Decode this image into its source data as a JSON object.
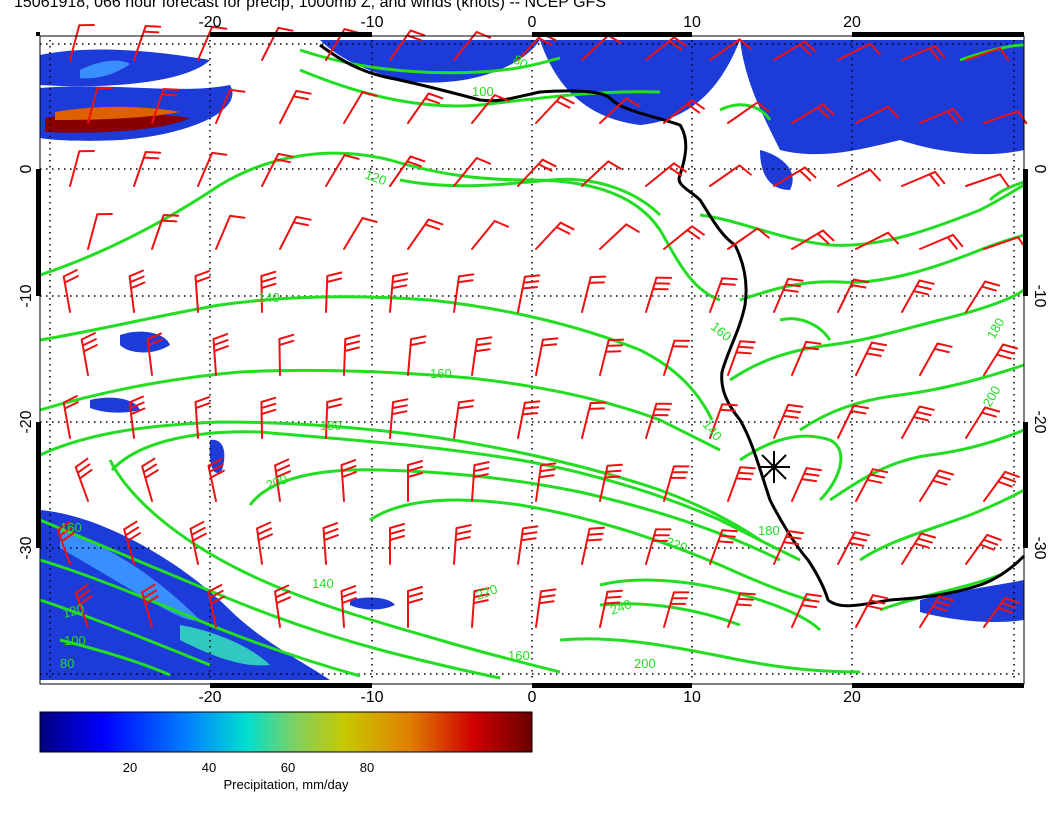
{
  "title": "15061918, 066 hour forecast for precip, 1000mb Z, and winds (knots) -- NCEP GFS",
  "map": {
    "lon_ticks": [
      "-20",
      "-10",
      "0",
      "10",
      "20"
    ],
    "lat_ticks": [
      "0",
      "-10",
      "-20",
      "-30"
    ],
    "contour_labels": [
      "80",
      "100",
      "120",
      "140",
      "160",
      "180",
      "200",
      "220",
      "240",
      "160",
      "140",
      "120",
      "100",
      "80",
      "200",
      "180",
      "160",
      "140",
      "200",
      "180",
      "160",
      "220"
    ],
    "station_marker": "asterisk",
    "colors": {
      "contour": "#22dd22",
      "wind_barb": "#ee1111",
      "coastline": "#000000",
      "graticule": "#000000"
    }
  },
  "colorbar": {
    "ticks": [
      "20",
      "40",
      "60",
      "80"
    ],
    "label": "Precipitation, mm/day",
    "stops": [
      "#00007f",
      "#0000ff",
      "#0080ff",
      "#00dfd0",
      "#80d060",
      "#c8c800",
      "#e08000",
      "#d00000",
      "#6a0000"
    ]
  }
}
